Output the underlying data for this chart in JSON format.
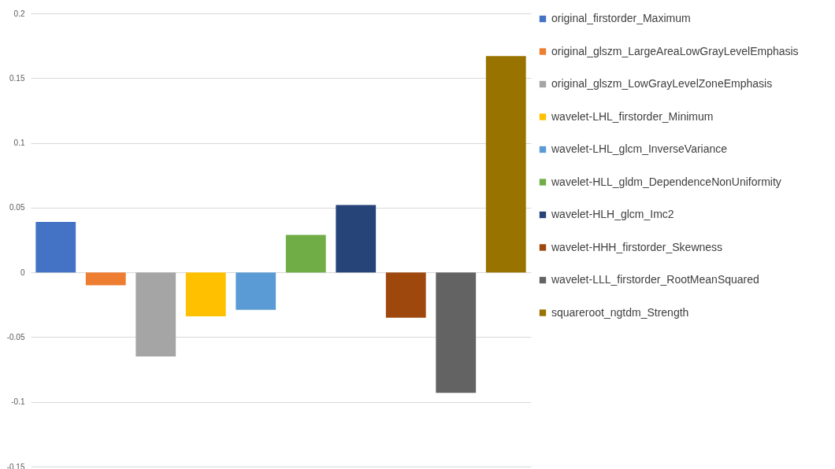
{
  "chart_data": {
    "type": "bar",
    "categories": [
      null
    ],
    "series": [
      {
        "name": "original_firstorder_Maximum",
        "color": "#4472c4",
        "values": [
          0.039
        ]
      },
      {
        "name": "original_glszm_LargeAreaLowGrayLevelEmphasis",
        "color": "#ed7d31",
        "values": [
          -0.01
        ]
      },
      {
        "name": "original_glszm_LowGrayLevelZoneEmphasis",
        "color": "#a5a5a5",
        "values": [
          -0.065
        ]
      },
      {
        "name": "wavelet-LHL_firstorder_Minimum",
        "color": "#ffc000",
        "values": [
          -0.034
        ]
      },
      {
        "name": "wavelet-LHL_glcm_InverseVariance",
        "color": "#5b9bd5",
        "values": [
          -0.029
        ]
      },
      {
        "name": "wavelet-HLL_gldm_DependenceNonUniformity",
        "color": "#70ad47",
        "values": [
          0.029
        ]
      },
      {
        "name": "wavelet-HLH_glcm_Imc2",
        "color": "#264478",
        "values": [
          0.052
        ]
      },
      {
        "name": "wavelet-HHH_firstorder_Skewness",
        "color": "#9e480e",
        "values": [
          -0.035
        ]
      },
      {
        "name": "wavelet-LLL_firstorder_RootMeanSquared",
        "color": "#636363",
        "values": [
          -0.093
        ]
      },
      {
        "name": "squareroot_ngtdm_Strength",
        "color": "#997300",
        "values": [
          0.167
        ]
      }
    ],
    "ylim": [
      -0.15,
      0.2
    ],
    "yticks": [
      -0.15,
      -0.1,
      -0.05,
      0,
      0.05,
      0.1,
      0.15,
      0.2
    ],
    "grid": "y",
    "legend": "right",
    "tick_labels": "y"
  }
}
